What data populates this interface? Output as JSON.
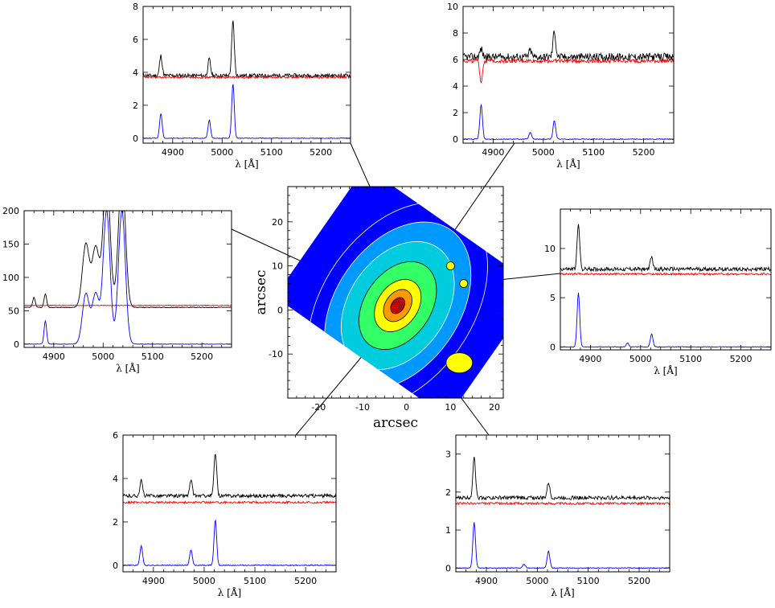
{
  "chart_data": [
    {
      "id": "top-left",
      "type": "line",
      "xlabel": "λ [Å]",
      "xlim": [
        4840,
        5260
      ],
      "xticks": [
        4900,
        5000,
        5100,
        5200
      ],
      "ylim": [
        -0.3,
        8
      ],
      "yticks": [
        0,
        2,
        4,
        6,
        8
      ],
      "series": [
        {
          "color": "#000000",
          "base": 3.8,
          "noise": 0.12,
          "lines": [
            [
              4876,
              1.2
            ],
            [
              4974,
              1.0
            ],
            [
              5022,
              3.3
            ]
          ]
        },
        {
          "color": "#ff0000",
          "base": 3.7,
          "noise": 0.06,
          "lines": []
        },
        {
          "color": "#0000ff",
          "base": 0,
          "noise": 0.02,
          "lines": [
            [
              4876,
              1.5
            ],
            [
              4974,
              1.1
            ],
            [
              5022,
              3.3
            ]
          ]
        }
      ]
    },
    {
      "id": "top-right",
      "type": "line",
      "xlabel": "λ [Å]",
      "xlim": [
        4840,
        5260
      ],
      "xticks": [
        4900,
        5000,
        5100,
        5200
      ],
      "ylim": [
        -0.3,
        10
      ],
      "yticks": [
        0,
        2,
        4,
        6,
        8,
        10
      ],
      "series": [
        {
          "color": "#000000",
          "base": 6.2,
          "noise": 0.28,
          "lines": [
            [
              4876,
              0.6
            ],
            [
              4974,
              0.5
            ],
            [
              5022,
              2.0
            ]
          ]
        },
        {
          "color": "#ff0000",
          "base": 5.9,
          "noise": 0.15,
          "lines": [
            [
              4876,
              -1.6
            ]
          ]
        },
        {
          "color": "#0000ff",
          "base": 0,
          "noise": 0.03,
          "lines": [
            [
              4876,
              2.6
            ],
            [
              4974,
              0.5
            ],
            [
              5022,
              1.4
            ]
          ]
        }
      ]
    },
    {
      "id": "middle-left",
      "type": "line",
      "xlabel": "λ [Å]",
      "xlim": [
        4840,
        5260
      ],
      "xticks": [
        4900,
        5000,
        5100,
        5200
      ],
      "ylim": [
        -5,
        200
      ],
      "yticks": [
        0,
        50,
        100,
        150,
        200
      ],
      "series": [
        {
          "color": "#000000",
          "base": 55,
          "noise": 0.5,
          "lines": [
            [
              4860,
              15
            ],
            [
              4883,
              20
            ],
            [
              4965,
              95
            ],
            [
              4985,
              90
            ],
            [
              5007,
              200
            ],
            [
              5038,
              200
            ]
          ]
        },
        {
          "color": "#ff0000",
          "base": 58,
          "noise": 0.5,
          "lines": []
        },
        {
          "color": "#0000ff",
          "base": 0,
          "noise": 0.3,
          "lines": [
            [
              4883,
              35
            ],
            [
              4965,
              75
            ],
            [
              4985,
              75
            ],
            [
              5007,
              200
            ],
            [
              5038,
              200
            ]
          ]
        }
      ]
    },
    {
      "id": "middle-right",
      "type": "line",
      "xlabel": "λ [Å]",
      "xlim": [
        4840,
        5260
      ],
      "xticks": [
        4900,
        5000,
        5100,
        5200
      ],
      "ylim": [
        -0.3,
        14
      ],
      "yticks": [
        0,
        5,
        10
      ],
      "series": [
        {
          "color": "#000000",
          "base": 7.9,
          "noise": 0.2,
          "lines": [
            [
              4876,
              4.5
            ],
            [
              5022,
              1.2
            ]
          ]
        },
        {
          "color": "#ff0000",
          "base": 7.4,
          "noise": 0.1,
          "lines": []
        },
        {
          "color": "#0000ff",
          "base": 0,
          "noise": 0.03,
          "lines": [
            [
              4876,
              5.5
            ],
            [
              4974,
              0.4
            ],
            [
              5022,
              1.3
            ]
          ]
        }
      ]
    },
    {
      "id": "bottom-left",
      "type": "line",
      "xlabel": "λ [Å]",
      "xlim": [
        4840,
        5260
      ],
      "xticks": [
        4900,
        5000,
        5100,
        5200
      ],
      "ylim": [
        -0.3,
        6
      ],
      "yticks": [
        0,
        2,
        4,
        6
      ],
      "series": [
        {
          "color": "#000000",
          "base": 3.2,
          "noise": 0.08,
          "lines": [
            [
              4876,
              0.7
            ],
            [
              4974,
              0.7
            ],
            [
              5022,
              2.0
            ]
          ]
        },
        {
          "color": "#ff0000",
          "base": 2.9,
          "noise": 0.05,
          "lines": []
        },
        {
          "color": "#0000ff",
          "base": 0,
          "noise": 0.02,
          "lines": [
            [
              4876,
              0.9
            ],
            [
              4974,
              0.7
            ],
            [
              5022,
              2.1
            ]
          ]
        }
      ]
    },
    {
      "id": "bottom-right",
      "type": "line",
      "xlabel": "λ [Å]",
      "xlim": [
        4840,
        5260
      ],
      "xticks": [
        4900,
        5000,
        5100,
        5200
      ],
      "ylim": [
        -0.1,
        3.5
      ],
      "yticks": [
        0,
        1,
        2,
        3
      ],
      "series": [
        {
          "color": "#000000",
          "base": 1.85,
          "noise": 0.05,
          "lines": [
            [
              4876,
              1.1
            ],
            [
              5022,
              0.4
            ]
          ]
        },
        {
          "color": "#ff0000",
          "base": 1.7,
          "noise": 0.03,
          "lines": []
        },
        {
          "color": "#0000ff",
          "base": 0,
          "noise": 0.01,
          "lines": [
            [
              4876,
              1.2
            ],
            [
              4974,
              0.1
            ],
            [
              5022,
              0.45
            ]
          ]
        }
      ]
    },
    {
      "id": "map",
      "type": "heatmap",
      "xlabel": "arcsec",
      "ylabel": "arcsec",
      "xlim": [
        -27,
        22
      ],
      "ylim": [
        -20,
        28
      ],
      "xticks": [
        -20,
        -10,
        0,
        10,
        20
      ],
      "yticks": [
        -10,
        0,
        10,
        20
      ],
      "center": [
        -2,
        1
      ],
      "orientation_deg": -35,
      "colors": [
        "#0000ff",
        "#0099ff",
        "#00ccdd",
        "#33ff66",
        "#ffff00",
        "#ff9900",
        "#ff0000"
      ]
    }
  ]
}
